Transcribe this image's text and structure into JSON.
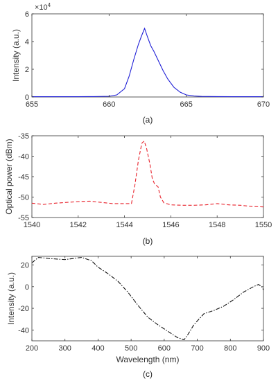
{
  "chart_data": [
    {
      "type": "line",
      "panel_label": "(a)",
      "xlabel": "",
      "ylabel": "Intensity (a.u.)",
      "xlim": [
        655,
        670
      ],
      "ylim": [
        0,
        6
      ],
      "y_scale_exponent_label": "×10",
      "y_scale_exponent_power": "4",
      "x_ticks": [
        "655",
        "660",
        "665",
        "670"
      ],
      "y_ticks": [
        "0",
        "2",
        "4",
        "6"
      ],
      "line_style": "solid",
      "color": "#1f1fd6",
      "series": [
        {
          "x": [
            655,
            656,
            657,
            658,
            659,
            660,
            660.5,
            661,
            661.3,
            661.6,
            661.9,
            662.1,
            662.3,
            662.5,
            662.7,
            662.9,
            663.2,
            663.5,
            663.8,
            664.2,
            664.6,
            665,
            665.5,
            666,
            667,
            668,
            669,
            670
          ],
          "y": [
            0.02,
            0.02,
            0.02,
            0.02,
            0.03,
            0.05,
            0.15,
            0.6,
            1.5,
            2.7,
            3.8,
            4.4,
            4.95,
            4.3,
            3.7,
            3.3,
            2.6,
            1.9,
            1.3,
            0.7,
            0.35,
            0.15,
            0.07,
            0.04,
            0.03,
            0.02,
            0.02,
            0.02
          ]
        }
      ]
    },
    {
      "type": "line",
      "panel_label": "(b)",
      "xlabel": "",
      "ylabel": "Optical power (dBm)",
      "xlim": [
        1540,
        1550
      ],
      "ylim": [
        -55,
        -35
      ],
      "x_ticks": [
        "1540",
        "1542",
        "1544",
        "1546",
        "1548",
        "1550"
      ],
      "y_ticks": [
        "-35",
        "-40",
        "-45",
        "-50",
        "-55"
      ],
      "line_style": "dashed",
      "color": "#e8202a",
      "series": [
        {
          "x": [
            1540,
            1540.5,
            1541,
            1541.5,
            1542,
            1542.5,
            1543,
            1543.5,
            1544,
            1544.3,
            1544.45,
            1544.6,
            1544.75,
            1544.85,
            1544.95,
            1545.1,
            1545.2,
            1545.3,
            1545.45,
            1545.55,
            1545.7,
            1546,
            1546.5,
            1547,
            1547.5,
            1548,
            1548.5,
            1549,
            1549.5,
            1550
          ],
          "y": [
            -51.5,
            -51.8,
            -51.5,
            -51.3,
            -51.1,
            -51.0,
            -51.3,
            -51.6,
            -51.6,
            -51.6,
            -47,
            -41,
            -36.8,
            -36.3,
            -38,
            -42,
            -45.5,
            -46.8,
            -47.5,
            -50,
            -51.4,
            -51.9,
            -52.0,
            -52.0,
            -51.9,
            -51.6,
            -51.9,
            -52.0,
            -52.3,
            -52.4
          ]
        }
      ]
    },
    {
      "type": "line",
      "panel_label": "(c)",
      "xlabel": "Wavelength (nm)",
      "ylabel": "Intensity (a.u.)",
      "xlim": [
        200,
        900
      ],
      "ylim": [
        -50,
        28
      ],
      "x_ticks": [
        "200",
        "300",
        "400",
        "500",
        "600",
        "700",
        "800",
        "900"
      ],
      "y_ticks": [
        "20",
        "0",
        "-20",
        "-40"
      ],
      "line_style": "dashdot",
      "color": "#111111",
      "series": [
        {
          "x": [
            200,
            220,
            250,
            300,
            350,
            380,
            400,
            430,
            460,
            490,
            520,
            550,
            580,
            610,
            640,
            660,
            670,
            690,
            720,
            750,
            780,
            810,
            840,
            870,
            885,
            895,
            900
          ],
          "y": [
            22,
            27,
            26,
            25,
            27,
            24,
            18,
            12,
            5,
            -5,
            -17,
            -28,
            -35,
            -41,
            -47,
            -49,
            -45,
            -35,
            -25,
            -22,
            -18,
            -12,
            -5,
            0,
            2,
            0,
            -3
          ]
        }
      ]
    }
  ]
}
